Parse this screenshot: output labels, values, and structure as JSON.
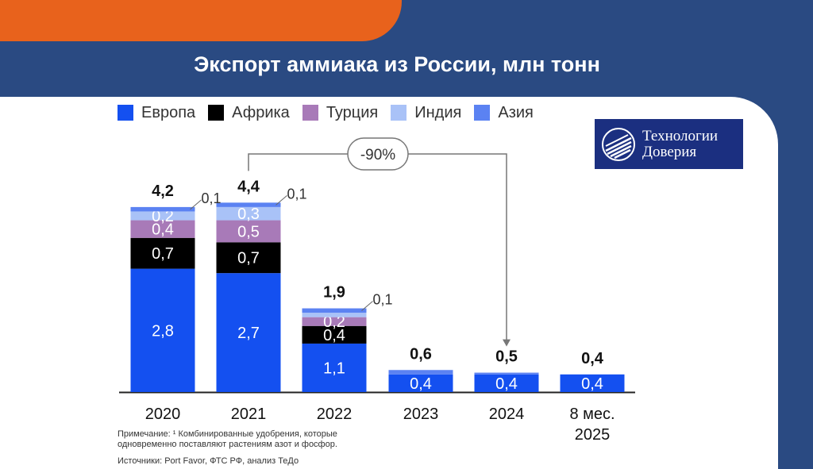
{
  "header": {
    "title": "Экспорт аммиака из России, млн тонн"
  },
  "logo": {
    "line1": "Технологии",
    "line2": "Доверия"
  },
  "colors": {
    "background": "#2a4a82",
    "orange": "#e8621c",
    "logo_bg": "#1b2f80"
  },
  "annotation": {
    "change_label": "-90%",
    "from": "2021",
    "to": "2024"
  },
  "notes": {
    "line1": "Примечание: ¹ Комбинированные удобрения, которые",
    "line2": "одновременно поставляют растениям азот и фосфор.",
    "source": "Источники: Port Favor, ФТС РФ, анализ ТеДо"
  },
  "chart_data": {
    "type": "bar",
    "stacked": true,
    "title": "Экспорт аммиака из России, млн тонн",
    "categories": [
      "2020",
      "2021",
      "2022",
      "2023",
      "2024",
      "8 мес. 2025"
    ],
    "category_lines": [
      [
        "2020"
      ],
      [
        "2021"
      ],
      [
        "2022"
      ],
      [
        "2023"
      ],
      [
        "2024"
      ],
      [
        "8 мес.",
        "2025"
      ]
    ],
    "totals": [
      "4,2",
      "4,4",
      "1,9",
      "0,6",
      "0,5",
      "0,4"
    ],
    "total_values": [
      4.2,
      4.4,
      1.9,
      0.6,
      0.5,
      0.4
    ],
    "series": [
      {
        "name": "Европа",
        "color": "#1450f0",
        "values": [
          2.8,
          2.7,
          1.1,
          0.4,
          0.4,
          0.4
        ],
        "labels": [
          "2,8",
          "2,7",
          "1,1",
          "0,4",
          "0,4",
          "0,4"
        ],
        "label_color": "#ffffff"
      },
      {
        "name": "Африка",
        "color": "#000000",
        "values": [
          0.7,
          0.7,
          0.4,
          0,
          0,
          0
        ],
        "labels": [
          "0,7",
          "0,7",
          "0,4",
          "",
          "",
          ""
        ],
        "label_color": "#ffffff"
      },
      {
        "name": "Турция",
        "color": "#a87ab8",
        "values": [
          0.4,
          0.5,
          0.2,
          0,
          0,
          0
        ],
        "labels": [
          "0,4",
          "0,5",
          "0,2",
          "",
          "",
          ""
        ],
        "label_color": "#ffffff"
      },
      {
        "name": "Индия",
        "color": "#a9c2f7",
        "values": [
          0.2,
          0.3,
          0.1,
          0,
          0,
          0
        ],
        "labels": [
          "0,2",
          "0,3",
          "",
          "",
          "",
          ""
        ],
        "label_color": "#ffffff"
      },
      {
        "name": "Азия",
        "color": "#5b82f2",
        "values": [
          0.1,
          0.1,
          0.1,
          0.1,
          0.04,
          0
        ],
        "labels": [
          "",
          "",
          "",
          "",
          "",
          ""
        ],
        "label_color": "#ffffff"
      }
    ],
    "callouts": [
      {
        "category": "2020",
        "text": "0,1"
      },
      {
        "category": "2021",
        "text": "0,1"
      },
      {
        "category": "2022",
        "text": "0,1"
      }
    ],
    "legend_position": "top-left",
    "grid": false
  }
}
